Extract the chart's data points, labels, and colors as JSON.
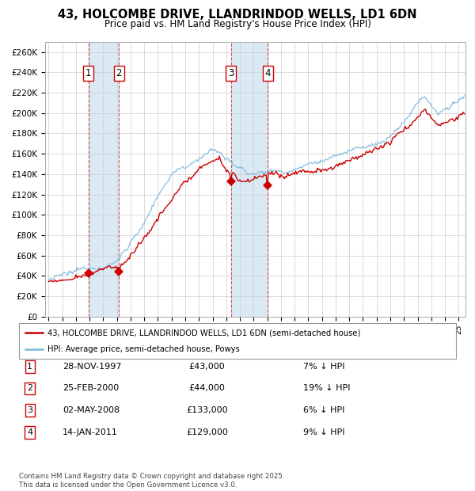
{
  "title": "43, HOLCOMBE DRIVE, LLANDRINDOD WELLS, LD1 6DN",
  "subtitle": "Price paid vs. HM Land Registry's House Price Index (HPI)",
  "ylim": [
    0,
    270000
  ],
  "xlim_start": 1994.75,
  "xlim_end": 2025.5,
  "hpi_color": "#7ab8d9",
  "price_color": "#cc0000",
  "grid_color": "#cccccc",
  "background_color": "#ffffff",
  "highlight_color": "#daeaf5",
  "transactions": [
    {
      "num": 1,
      "date": "28-NOV-1997",
      "price": 43000,
      "pct": "7%",
      "x": 1997.91
    },
    {
      "num": 2,
      "date": "25-FEB-2000",
      "price": 44000,
      "pct": "19%",
      "x": 2000.15
    },
    {
      "num": 3,
      "date": "02-MAY-2008",
      "price": 133000,
      "pct": "6%",
      "x": 2008.33
    },
    {
      "num": 4,
      "date": "14-JAN-2011",
      "price": 129000,
      "pct": "9%",
      "x": 2011.04
    }
  ],
  "legend_label_price": "43, HOLCOMBE DRIVE, LLANDRINDOD WELLS, LD1 6DN (semi-detached house)",
  "legend_label_hpi": "HPI: Average price, semi-detached house, Powys",
  "footer": "Contains HM Land Registry data © Crown copyright and database right 2025.\nThis data is licensed under the Open Government Licence v3.0."
}
